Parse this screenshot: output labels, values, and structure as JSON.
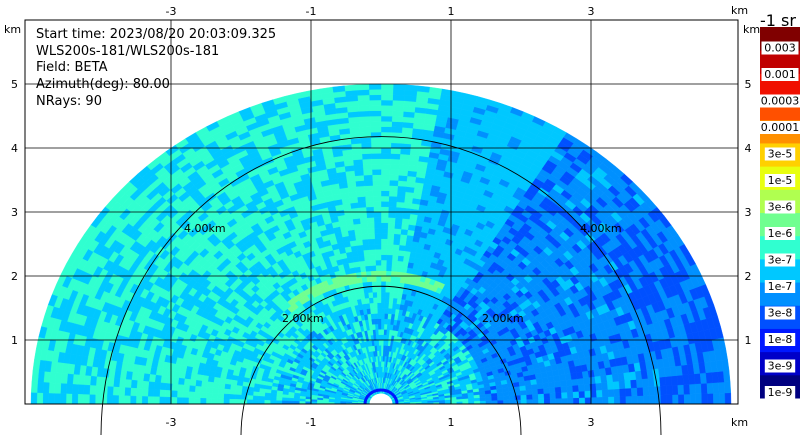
{
  "info_lines": [
    "Start time: 2023/08/20 20:03:09.325",
    "WLS200s-181/WLS200s-181",
    "Field: BETA",
    "Azimuth(deg): 80.00",
    "NRays: 90"
  ],
  "axis_unit": "km",
  "colorbar_title": "-1 sr",
  "colorbar": {
    "colors": [
      "#000080",
      "#0000c8",
      "#0018ff",
      "#0050ff",
      "#0090ff",
      "#00c8ff",
      "#30ffd0",
      "#70ff90",
      "#b0ff50",
      "#e8ff10",
      "#ffd000",
      "#ff9000",
      "#ff5000",
      "#f01000",
      "#c00000",
      "#800000"
    ],
    "labels": [
      "1e-9",
      "3e-9",
      "1e-8",
      "3e-8",
      "1e-7",
      "3e-7",
      "1e-6",
      "3e-6",
      "1e-5",
      "3e-5",
      "0.0001",
      "0.0003",
      "0.001",
      "0.003"
    ]
  },
  "chart_data": {
    "type": "heatmap",
    "subtype": "RHI/PPI sector scan, polar",
    "field": "BETA",
    "x_ticks": [
      -3,
      -1,
      1,
      3
    ],
    "y_ticks": [
      1,
      2,
      3,
      4,
      5
    ],
    "xlim": [
      -5.0,
      5.0
    ],
    "ylim": [
      0,
      5.6
    ],
    "range_rings_km": [
      2.0,
      4.0
    ],
    "ring_labels": [
      "2.00km",
      "2.00km",
      "4.00km",
      "4.00km"
    ],
    "max_range_km": 5.0,
    "nrays": 90,
    "grid": true,
    "value_min": "1e-9",
    "value_max": "0.003"
  }
}
